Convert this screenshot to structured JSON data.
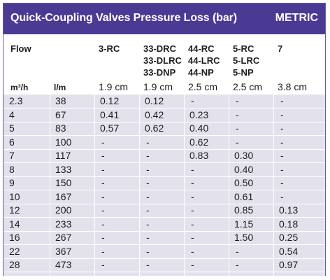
{
  "header": {
    "title": "Quick-Coupling Valves Pressure Loss (bar)",
    "unit": "METRIC"
  },
  "columns": {
    "flow": "Flow",
    "c1": [
      "3-RC"
    ],
    "c2": [
      "33-DRC",
      "33-DLRC",
      "33-DNP"
    ],
    "c3": [
      "44-RC",
      "44-LRC",
      "44-NP"
    ],
    "c4": [
      "5-RC",
      "5-LRC",
      "5-NP"
    ],
    "c5": [
      "7"
    ]
  },
  "units": {
    "m3h": "m³/h",
    "lm": "l/m"
  },
  "sizes": [
    "1.9 cm",
    "1.9 cm",
    "2.5 cm",
    "2.5 cm",
    "3.8 cm"
  ],
  "rows": [
    [
      "2.3",
      "38",
      "0.12",
      "0.12",
      "-",
      "-",
      "-"
    ],
    [
      "4",
      "67",
      "0.41",
      "0.42",
      "0.23",
      "-",
      "-"
    ],
    [
      "5",
      "83",
      "0.57",
      "0.62",
      "0.40",
      "-",
      "-"
    ],
    [
      "6",
      "100",
      "-",
      "-",
      "0.62",
      "-",
      "-"
    ],
    [
      "7",
      "117",
      "-",
      "-",
      "0.83",
      "0.30",
      "-"
    ],
    [
      "8",
      "133",
      "-",
      "-",
      "-",
      "0.40",
      "-"
    ],
    [
      "9",
      "150",
      "-",
      "-",
      "-",
      "0.50",
      "-"
    ],
    [
      "10",
      "167",
      "-",
      "-",
      "-",
      "0.61",
      "-"
    ],
    [
      "12",
      "200",
      "-",
      "-",
      "-",
      "0.85",
      "0.13"
    ],
    [
      "14",
      "233",
      "-",
      "-",
      "-",
      "1.15",
      "0.18"
    ],
    [
      "16",
      "267",
      "-",
      "-",
      "-",
      "1.50",
      "0.25"
    ],
    [
      "22",
      "367",
      "-",
      "-",
      "-",
      "-",
      "0.54"
    ],
    [
      "28",
      "473",
      "-",
      "-",
      "-",
      "-",
      "0.97"
    ]
  ]
}
